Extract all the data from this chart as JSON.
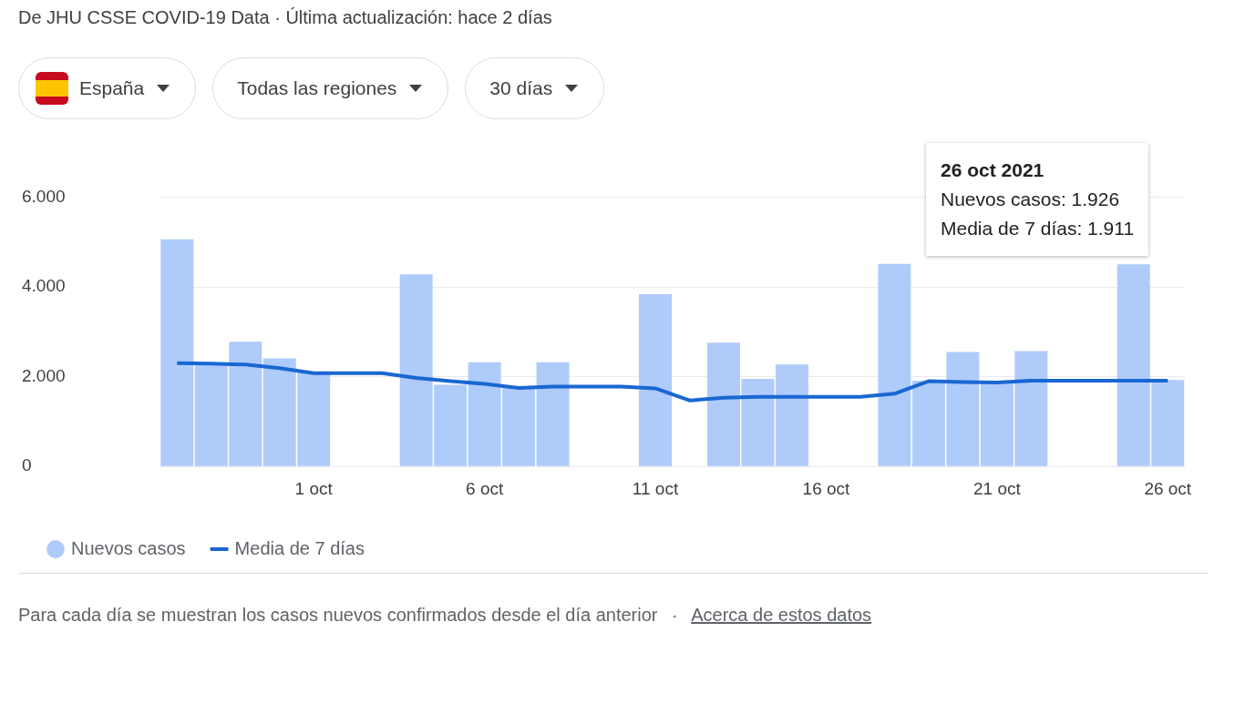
{
  "chart_data": {
    "type": "bar",
    "title": "De JHU CSSE COVID-19 Data · Última actualización: hace 2 días",
    "categories": [
      null,
      null,
      null,
      null,
      "1 oct",
      null,
      null,
      null,
      null,
      "6 oct",
      null,
      null,
      null,
      null,
      "11 oct",
      null,
      null,
      null,
      null,
      "16 oct",
      null,
      null,
      null,
      null,
      "21 oct",
      null,
      null,
      null,
      null,
      "26 oct"
    ],
    "series": [
      {
        "name": "Nuevos casos",
        "color": "#aecbfa",
        "values": [
          5060,
          2300,
          2780,
          2410,
          2100,
          0,
          0,
          4280,
          1820,
          2320,
          1780,
          2320,
          0,
          0,
          3840,
          0,
          2760,
          1950,
          2270,
          0,
          0,
          4510,
          1910,
          2550,
          1890,
          2570,
          0,
          0,
          4500,
          1926
        ]
      },
      {
        "name": "Media de 7 días",
        "type": "line",
        "color": "#1967d2",
        "values": [
          2300,
          2290,
          2270,
          2190,
          2080,
          2080,
          2080,
          1970,
          1900,
          1840,
          1750,
          1780,
          1780,
          1780,
          1740,
          1470,
          1530,
          1550,
          1550,
          1550,
          1550,
          1620,
          1900,
          1880,
          1870,
          1910,
          1910,
          1910,
          1910,
          1911
        ]
      }
    ],
    "ylim": [
      0,
      6000
    ],
    "yticks": [
      0,
      {
        "value": 2000,
        "label": "2.000"
      },
      {
        "value": 4000,
        "label": "4.000"
      },
      {
        "value": 6000,
        "label": "6.000"
      }
    ],
    "grid": "y",
    "legend": "bottom left",
    "marker": "none",
    "line_style": "solid",
    "annotations": [
      "España",
      "Todas las regiones",
      "30 días",
      "26 oct 2021",
      "Nuevos casos: 1.926",
      "Media de 7 días: 1.911",
      "Para cada día se muestran los casos nuevos confirmados desde el día anterior",
      "·",
      "Acerca de estos datos"
    ]
  }
}
